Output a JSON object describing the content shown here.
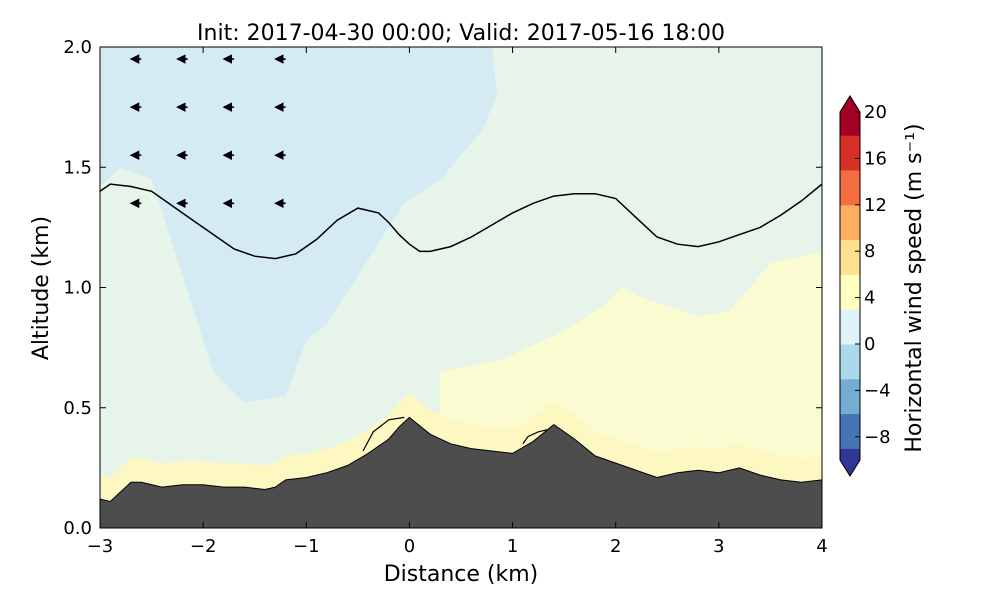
{
  "chart_data": {
    "type": "heatmap",
    "title": "Init: 2017-04-30 00:00; Valid: 2017-05-16 18:00",
    "xlabel": "Distance (km)",
    "ylabel": "Altitude (km)",
    "xlim": [
      -3,
      4
    ],
    "ylim": [
      0,
      2
    ],
    "xticks": [
      "−3",
      "−2",
      "−1",
      "0",
      "1",
      "2",
      "3",
      "4"
    ],
    "yticks": [
      "0.0",
      "0.5",
      "1.0",
      "1.5",
      "2.0"
    ],
    "colorbar": {
      "label": "Horizontal wind speed (m s⁻¹)",
      "min": -10,
      "max": 20,
      "ticks": [
        "−8",
        "−4",
        "0",
        "4",
        "8",
        "12",
        "16",
        "20"
      ],
      "extend": "both",
      "colors": [
        "#313695",
        "#4575b4",
        "#74add1",
        "#abd9e9",
        "#e0f3f8",
        "#ffffbf",
        "#fee090",
        "#fdae61",
        "#f46d43",
        "#d73027",
        "#a50026"
      ]
    },
    "background_field": [
      {
        "region": "upper-left",
        "value": -3,
        "color": "#d4ebf3"
      },
      {
        "region": "elsewhere",
        "value": -1,
        "color": "#e6f4ea"
      },
      {
        "region": "lower-right",
        "value": 1,
        "color": "#fafbd0"
      },
      {
        "region": "near-ground band",
        "value": 2,
        "color": "#fdf7c2"
      }
    ],
    "terrain": {
      "color": "#4d4d4d",
      "x": [
        -3,
        -2.9,
        -2.8,
        -2.7,
        -2.6,
        -2.4,
        -2.2,
        -2.0,
        -1.8,
        -1.6,
        -1.4,
        -1.3,
        -1.2,
        -1.0,
        -0.8,
        -0.6,
        -0.4,
        -0.2,
        -0.1,
        0,
        0.2,
        0.4,
        0.6,
        0.8,
        1.0,
        1.2,
        1.4,
        1.6,
        1.8,
        2.0,
        2.2,
        2.4,
        2.6,
        2.8,
        3.0,
        3.2,
        3.4,
        3.6,
        3.8,
        4.0
      ],
      "y": [
        0.12,
        0.11,
        0.15,
        0.19,
        0.19,
        0.17,
        0.18,
        0.18,
        0.17,
        0.17,
        0.16,
        0.17,
        0.2,
        0.21,
        0.23,
        0.26,
        0.31,
        0.37,
        0.42,
        0.46,
        0.39,
        0.35,
        0.33,
        0.32,
        0.31,
        0.36,
        0.43,
        0.37,
        0.3,
        0.27,
        0.24,
        0.21,
        0.23,
        0.24,
        0.23,
        0.25,
        0.22,
        0.2,
        0.19,
        0.2
      ]
    },
    "zero_wind_contour": {
      "x": [
        -3.0,
        -2.9,
        -2.7,
        -2.5,
        -2.3,
        -2.1,
        -1.9,
        -1.7,
        -1.5,
        -1.3,
        -1.1,
        -0.9,
        -0.7,
        -0.5,
        -0.3,
        -0.2,
        -0.1,
        0.0,
        0.1,
        0.2,
        0.4,
        0.6,
        0.8,
        1.0,
        1.2,
        1.4,
        1.6,
        1.8,
        2.0,
        2.2,
        2.4,
        2.6,
        2.8,
        3.0,
        3.2,
        3.4,
        3.6,
        3.8,
        4.0
      ],
      "y": [
        1.4,
        1.43,
        1.42,
        1.4,
        1.34,
        1.28,
        1.22,
        1.16,
        1.13,
        1.12,
        1.14,
        1.2,
        1.28,
        1.33,
        1.31,
        1.27,
        1.22,
        1.18,
        1.15,
        1.15,
        1.17,
        1.21,
        1.26,
        1.31,
        1.35,
        1.38,
        1.39,
        1.39,
        1.37,
        1.29,
        1.21,
        1.18,
        1.17,
        1.19,
        1.22,
        1.25,
        1.3,
        1.36,
        1.43
      ]
    },
    "small_contours": [
      {
        "x": [
          -0.45,
          -0.35,
          -0.2,
          -0.05
        ],
        "y": [
          0.32,
          0.4,
          0.45,
          0.46
        ]
      },
      {
        "x": [
          1.1,
          1.15,
          1.25,
          1.35
        ],
        "y": [
          0.35,
          0.38,
          0.4,
          0.41
        ]
      }
    ],
    "wind_vectors": [
      {
        "x": -2.6,
        "y": 1.95,
        "u": -1,
        "w": 0
      },
      {
        "x": -2.15,
        "y": 1.95,
        "u": -1,
        "w": 0
      },
      {
        "x": -1.7,
        "y": 1.95,
        "u": -1,
        "w": 0
      },
      {
        "x": -1.2,
        "y": 1.95,
        "u": -1,
        "w": 0
      },
      {
        "x": -2.6,
        "y": 1.75,
        "u": -1,
        "w": 0
      },
      {
        "x": -2.15,
        "y": 1.75,
        "u": -1,
        "w": 0
      },
      {
        "x": -1.7,
        "y": 1.75,
        "u": -1,
        "w": 0
      },
      {
        "x": -1.2,
        "y": 1.75,
        "u": -1,
        "w": 0
      },
      {
        "x": -2.6,
        "y": 1.55,
        "u": -1,
        "w": 0
      },
      {
        "x": -2.15,
        "y": 1.55,
        "u": -1,
        "w": 0
      },
      {
        "x": -1.7,
        "y": 1.55,
        "u": -1,
        "w": 0
      },
      {
        "x": -1.2,
        "y": 1.55,
        "u": -1,
        "w": 0
      },
      {
        "x": -2.6,
        "y": 1.35,
        "u": -1,
        "w": 0
      },
      {
        "x": -2.15,
        "y": 1.35,
        "u": -1,
        "w": 0
      },
      {
        "x": -1.7,
        "y": 1.35,
        "u": -1,
        "w": 0
      },
      {
        "x": -1.2,
        "y": 1.35,
        "u": -1,
        "w": 0
      }
    ]
  }
}
